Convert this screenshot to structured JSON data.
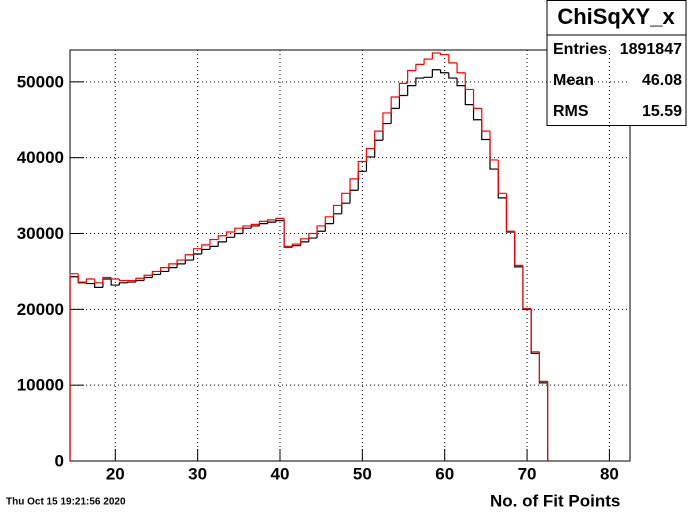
{
  "chart_data": {
    "type": "histogram",
    "stats": {
      "title": "ChiSqXY_x",
      "rows": [
        [
          "Entries",
          "1891847"
        ],
        [
          "Mean",
          "46.08"
        ],
        [
          "RMS",
          "15.59"
        ]
      ]
    },
    "xlabel": "No. of Fit Points",
    "date": "Thu Oct 15 19:21:56 2020",
    "bins": [
      14.5,
      15.5,
      16.5,
      17.5,
      18.5,
      19.5,
      20.5,
      21.5,
      22.5,
      23.5,
      24.5,
      25.5,
      26.5,
      27.5,
      28.5,
      29.5,
      30.5,
      31.5,
      32.5,
      33.5,
      34.5,
      35.5,
      36.5,
      37.5,
      38.5,
      39.5,
      40.5,
      41.5,
      42.5,
      43.5,
      44.5,
      45.5,
      46.5,
      47.5,
      48.5,
      49.5,
      50.5,
      51.5,
      52.5,
      53.5,
      54.5,
      55.5,
      56.5,
      57.5,
      58.5,
      59.5,
      60.5,
      61.5,
      62.5,
      63.5,
      64.5,
      65.5,
      66.5,
      67.5,
      68.5,
      69.5,
      70.5,
      71.5,
      72.5
    ],
    "series": [
      {
        "color": "#000000",
        "values": [
          24300,
          23500,
          23400,
          22900,
          24000,
          23200,
          23500,
          23600,
          23800,
          24200,
          24600,
          25000,
          25500,
          26000,
          26500,
          27300,
          27900,
          28300,
          28900,
          29500,
          30000,
          30700,
          31000,
          31300,
          31500,
          31700,
          28200,
          28400,
          28900,
          29400,
          30300,
          31300,
          32600,
          34000,
          35700,
          38200,
          40100,
          42300,
          44500,
          46500,
          48200,
          49500,
          50500,
          50600,
          51600,
          51200,
          50500,
          49500,
          47000,
          45000,
          42400,
          38500,
          34700,
          30200,
          25600,
          20000,
          14200,
          10300
        ]
      },
      {
        "color": "#ff0000",
        "values": [
          24700,
          23600,
          24000,
          23500,
          24200,
          24000,
          23800,
          23800,
          24100,
          24500,
          25000,
          25500,
          26000,
          26500,
          27200,
          28000,
          28500,
          29200,
          29700,
          30200,
          30700,
          31000,
          31200,
          31600,
          31800,
          32000,
          28300,
          28600,
          29300,
          30000,
          31000,
          32200,
          33700,
          35300,
          37200,
          39500,
          41200,
          43500,
          45900,
          48000,
          49800,
          51500,
          52300,
          53000,
          53800,
          53600,
          52500,
          51200,
          49000,
          46500,
          43500,
          39700,
          35300,
          30300,
          25800,
          20100,
          14400,
          10500
        ]
      }
    ],
    "xlim": [
      14.5,
      82.5
    ],
    "ylim": [
      0,
      54200
    ],
    "xticks": [
      20,
      30,
      40,
      50,
      60,
      70,
      80
    ],
    "yticks": [
      0,
      10000,
      20000,
      30000,
      40000,
      50000
    ],
    "grid": true
  }
}
